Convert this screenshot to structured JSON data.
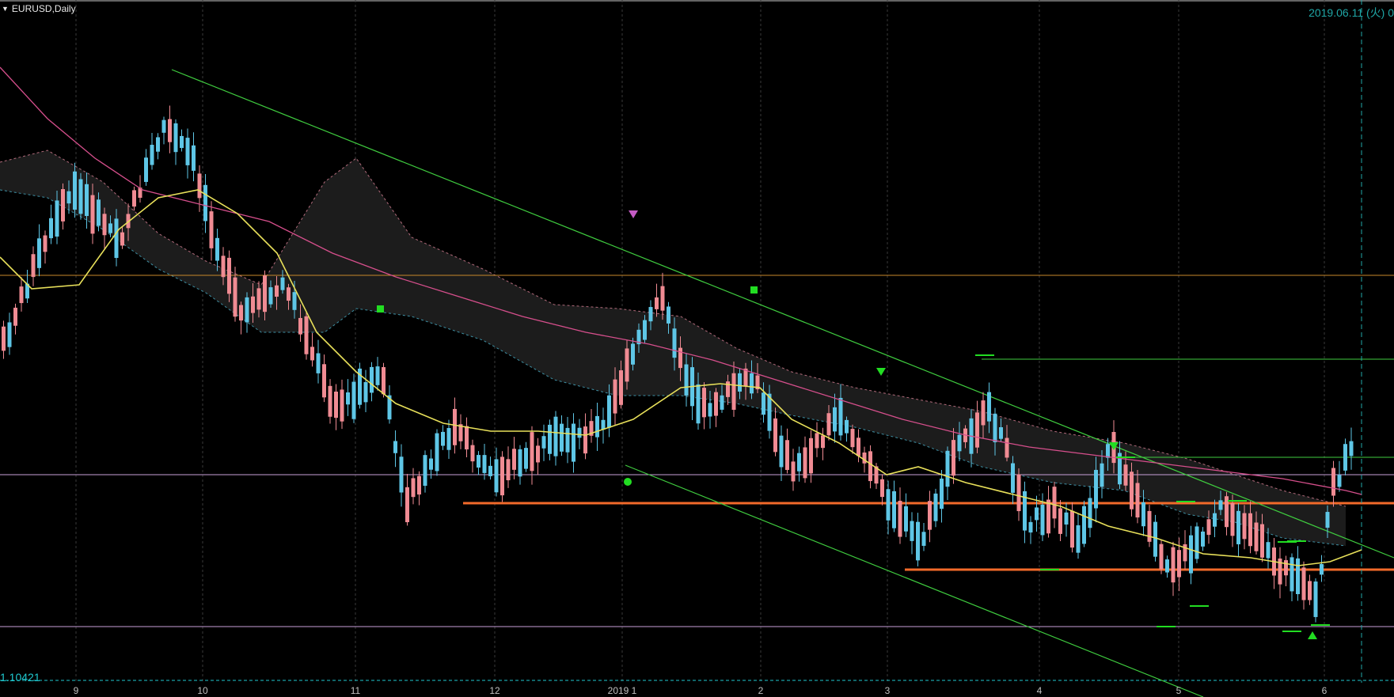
{
  "window": {
    "title": "EURUSD,Daily",
    "date_readout": "2019.06.11 (火) 0",
    "current_price_label": "1.10421"
  },
  "colors": {
    "background": "#000000",
    "bull_candle": "#f08b93",
    "bear_candle": "#5ec6e6",
    "ma_fast": "#e8e05a",
    "ma_slow": "#d64f8c",
    "trendline": "#3fcc3f",
    "support_line": "#f26a2a",
    "ichimoku_cloud": "#1c1c1c"
  },
  "icons": [
    "menu-caret-icon"
  ],
  "chart_data": {
    "type": "candlestick",
    "symbol": "EURUSD",
    "timeframe": "Daily",
    "x_tick_labels": [
      "9",
      "10",
      "11",
      "12",
      "2019 1",
      "2",
      "3",
      "4",
      "5",
      "6"
    ],
    "visible_price_label": 1.10421,
    "current_date": "2019.06.11",
    "indicators": [
      "moving-average-fast",
      "moving-average-slow",
      "ichimoku-cloud"
    ],
    "horizontal_levels": [
      "orange-support-upper",
      "orange-support-lower",
      "orange-resistance",
      "pink-level-upper",
      "pink-level-lower",
      "green-level-top",
      "green-level-mid"
    ],
    "markers": [
      "pink-down-arrow",
      "green-square-1",
      "green-square-2",
      "green-circle",
      "green-down-arrow-1",
      "green-down-arrow-2",
      "green-up-arrow"
    ]
  }
}
